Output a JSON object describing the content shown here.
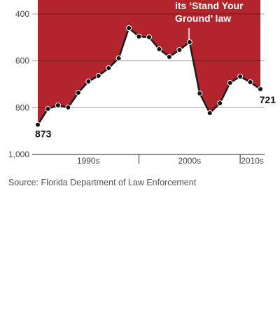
{
  "chart_data": {
    "type": "line",
    "annotation": [
      "its ‘Stand Your",
      "Ground’ law"
    ],
    "x": [
      1990,
      1991,
      1992,
      1993,
      1994,
      1995,
      1996,
      1997,
      1998,
      1999,
      2000,
      2001,
      2002,
      2003,
      2004,
      2005,
      2006,
      2007,
      2008,
      2009,
      2010,
      2011,
      2012
    ],
    "values": [
      873,
      805,
      790,
      799,
      736,
      688,
      664,
      631,
      589,
      460,
      496,
      499,
      550,
      583,
      553,
      520,
      739,
      823,
      781,
      694,
      667,
      691,
      721
    ],
    "xlim": [
      1990,
      2012
    ],
    "decades": [
      {
        "label": "1990s",
        "start": 1990,
        "end": 2000
      },
      {
        "label": "2000s",
        "start": 2000,
        "end": 2010
      },
      {
        "label": "2010s",
        "start": 2010,
        "end": 2012
      }
    ],
    "ylim": [
      1000,
      340
    ],
    "yticks": [
      400,
      600,
      800,
      {
        "value": 1000,
        "label": "1,000"
      }
    ],
    "fill_color": "#b3252d",
    "line_color": "#1a1a1a",
    "grid": true,
    "source": "Source: Florida Department of Law Enforcement"
  }
}
